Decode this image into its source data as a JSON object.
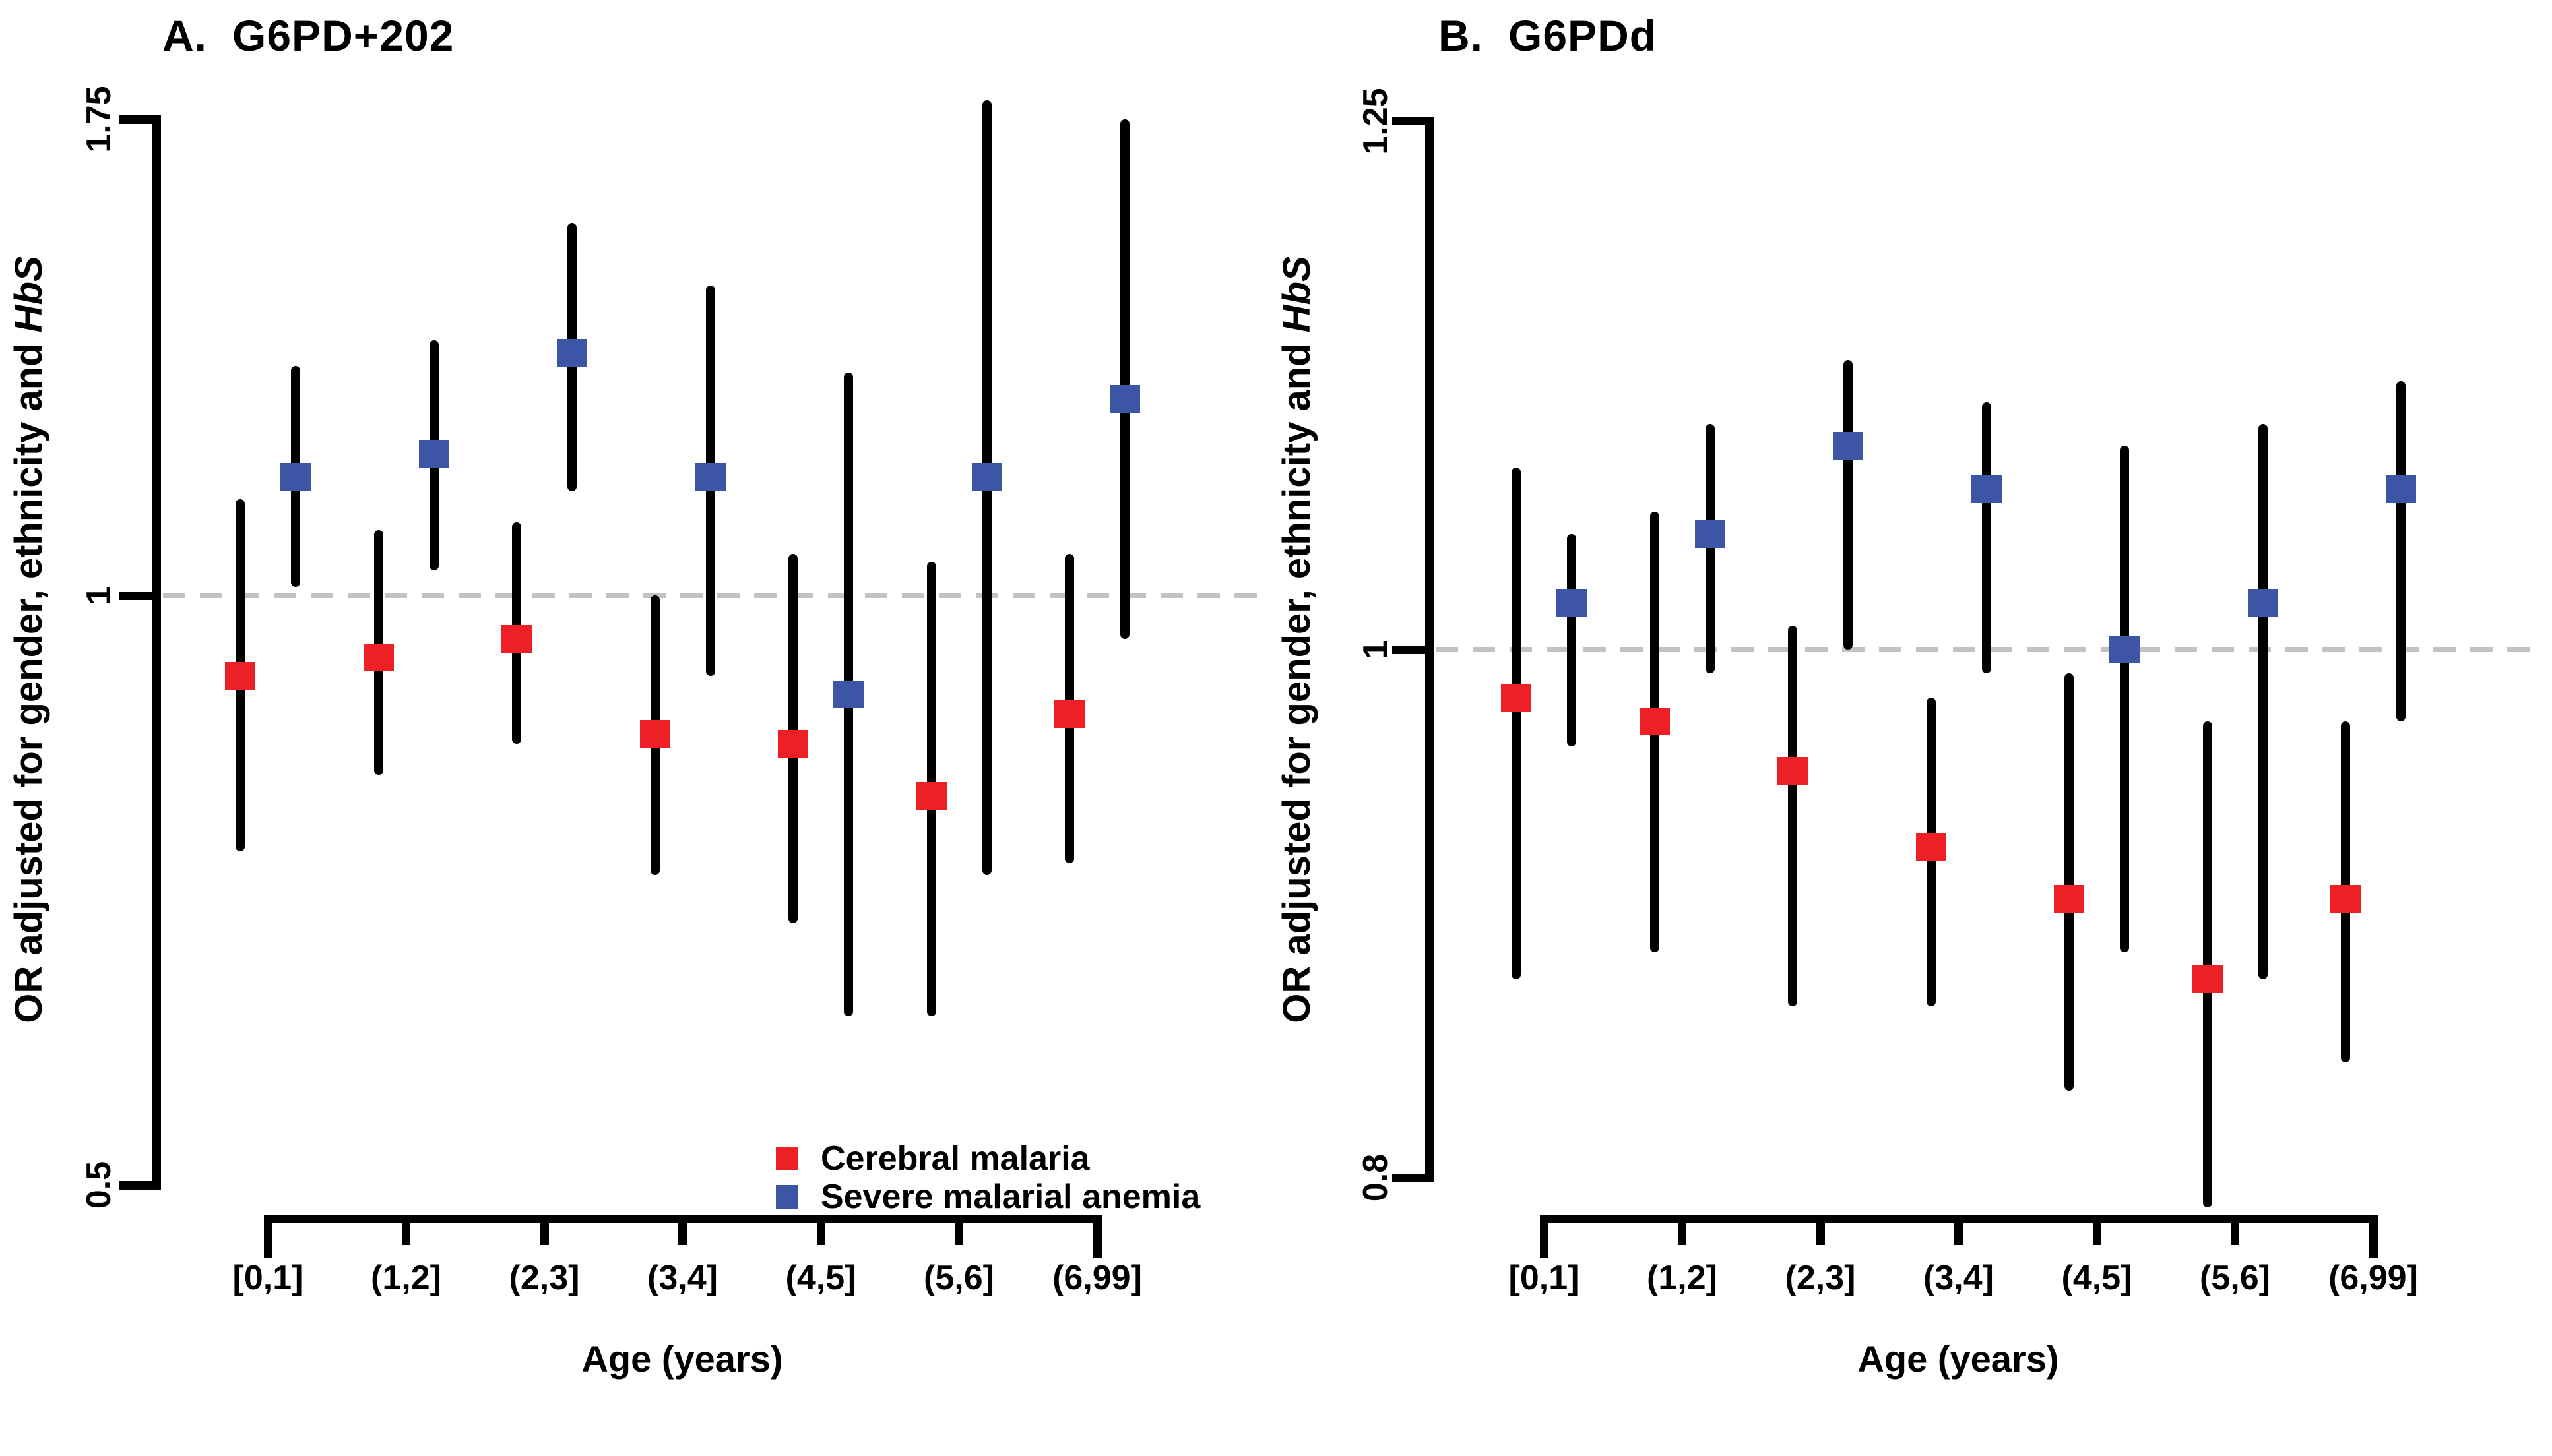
{
  "figure": {
    "colors": {
      "cerebral_malaria": "#ED2026",
      "severe_malarial_anemia": "#3C55A5",
      "reference_line": "#C2C2C2",
      "axis": "#000000",
      "background": "#FFFFFF"
    },
    "legend": {
      "position": "bottom-center-of-panel-A",
      "items": [
        {
          "label": "Cerebral malaria",
          "series_key": "cerebral_malaria"
        },
        {
          "label": "Severe malarial anemia",
          "series_key": "severe_malarial_anemia"
        }
      ]
    }
  },
  "chart_data": [
    {
      "type": "scatter",
      "subtype": "point-estimates-with-95ci-error-bars",
      "panel_label": "A.",
      "title": "G6PD+202",
      "ylabel_prefix": "OR adjusted for gender, ethnicity and ",
      "ylabel_italic": "HbS",
      "xlabel": "Age (years)",
      "yscale": "log",
      "grid": false,
      "reference_line": 1,
      "yticks": [
        1.75,
        1,
        0.5
      ],
      "ytick_labels": [
        "1.75",
        "1",
        "0.5"
      ],
      "ylim": [
        0.5,
        1.75
      ],
      "categories": [
        "[0,1]",
        "(1,2]",
        "(2,3]",
        "(3,4]",
        "(4,5]",
        "(5,6]",
        "(6,99]"
      ],
      "series": [
        {
          "name": "Cerebral malaria",
          "color_key": "cerebral_malaria",
          "or": [
            0.91,
            0.93,
            0.95,
            0.85,
            0.84,
            0.79,
            0.87
          ],
          "lo": [
            0.74,
            0.81,
            0.84,
            0.72,
            0.68,
            0.61,
            0.73
          ],
          "hi": [
            1.12,
            1.08,
            1.09,
            1.0,
            1.05,
            1.04,
            1.05
          ]
        },
        {
          "name": "Severe malarial anemia",
          "color_key": "severe_malarial_anemia",
          "or": [
            1.15,
            1.18,
            1.33,
            1.15,
            0.89,
            1.15,
            1.26
          ],
          "lo": [
            1.01,
            1.03,
            1.13,
            0.91,
            0.61,
            0.72,
            0.95
          ],
          "hi": [
            1.31,
            1.35,
            1.55,
            1.44,
            1.3,
            1.79,
            1.75
          ]
        }
      ]
    },
    {
      "type": "scatter",
      "subtype": "point-estimates-with-95ci-error-bars",
      "panel_label": "B.",
      "title": "G6PDd",
      "ylabel_prefix": "OR adjusted for gender, ethnicity and ",
      "ylabel_italic": "HbS",
      "xlabel": "Age (years)",
      "yscale": "log",
      "grid": false,
      "reference_line": 1,
      "yticks": [
        1.25,
        1,
        0.8
      ],
      "ytick_labels": [
        "1.25",
        "1",
        "0.8"
      ],
      "ylim": [
        0.8,
        1.25
      ],
      "categories": [
        "[0,1]",
        "(1,2]",
        "(2,3]",
        "(3,4]",
        "(4,5]",
        "(5,6]",
        "(6,99]"
      ],
      "series": [
        {
          "name": "Cerebral malaria",
          "color_key": "cerebral_malaria",
          "or": [
            0.98,
            0.97,
            0.95,
            0.92,
            0.9,
            0.87,
            0.9
          ],
          "lo": [
            0.87,
            0.88,
            0.86,
            0.86,
            0.83,
            0.79,
            0.84
          ],
          "hi": [
            1.08,
            1.06,
            1.01,
            0.98,
            0.99,
            0.97,
            0.97
          ]
        },
        {
          "name": "Severe malarial anemia",
          "color_key": "severe_malarial_anemia",
          "or": [
            1.02,
            1.05,
            1.09,
            1.07,
            1.0,
            1.02,
            1.07
          ],
          "lo": [
            0.96,
            0.99,
            1.0,
            0.99,
            0.88,
            0.87,
            0.97
          ],
          "hi": [
            1.05,
            1.1,
            1.13,
            1.11,
            1.09,
            1.1,
            1.12
          ]
        }
      ]
    }
  ]
}
